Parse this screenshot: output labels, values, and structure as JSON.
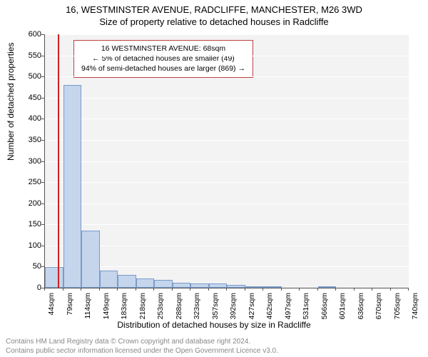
{
  "title_main": "16, WESTMINSTER AVENUE, RADCLIFFE, MANCHESTER, M26 3WD",
  "title_sub": "Size of property relative to detached houses in Radcliffe",
  "y_axis_label": "Number of detached properties",
  "x_axis_label": "Distribution of detached houses by size in Radcliffe",
  "footer_line1": "Contains HM Land Registry data © Crown copyright and database right 2024.",
  "footer_line2": "Contains public sector information licensed under the Open Government Licence v3.0.",
  "annotation": {
    "line1": "16 WESTMINSTER AVENUE: 68sqm",
    "line2": "← 5% of detached houses are smaller (49)",
    "line3": "94% of semi-detached houses are larger (869) →"
  },
  "chart": {
    "type": "histogram",
    "plot_bg": "#f3f3f4",
    "grid_color": "#ffffff",
    "bar_fill": "#c4d5ec",
    "bar_border": "#7a9bc9",
    "subject_line_color": "#d02020",
    "annotation_border": "#c04040",
    "ylim": [
      0,
      600
    ],
    "ytick_step": 50,
    "x_start": 44,
    "x_step": 34.8,
    "x_labels": [
      "44sqm",
      "79sqm",
      "114sqm",
      "149sqm",
      "183sqm",
      "218sqm",
      "253sqm",
      "288sqm",
      "323sqm",
      "357sqm",
      "392sqm",
      "427sqm",
      "462sqm",
      "497sqm",
      "531sqm",
      "566sqm",
      "601sqm",
      "636sqm",
      "670sqm",
      "705sqm",
      "740sqm"
    ],
    "subject_x_value": 68,
    "bars": [
      {
        "x": 44,
        "count": 49
      },
      {
        "x": 79,
        "count": 480
      },
      {
        "x": 114,
        "count": 135
      },
      {
        "x": 149,
        "count": 40
      },
      {
        "x": 183,
        "count": 30
      },
      {
        "x": 218,
        "count": 22
      },
      {
        "x": 253,
        "count": 18
      },
      {
        "x": 288,
        "count": 12
      },
      {
        "x": 323,
        "count": 11
      },
      {
        "x": 357,
        "count": 10
      },
      {
        "x": 392,
        "count": 6
      },
      {
        "x": 427,
        "count": 4
      },
      {
        "x": 462,
        "count": 2
      },
      {
        "x": 497,
        "count": 0
      },
      {
        "x": 531,
        "count": 0
      },
      {
        "x": 566,
        "count": 1
      },
      {
        "x": 601,
        "count": 0
      },
      {
        "x": 636,
        "count": 0
      },
      {
        "x": 670,
        "count": 0
      },
      {
        "x": 705,
        "count": 0
      }
    ]
  }
}
